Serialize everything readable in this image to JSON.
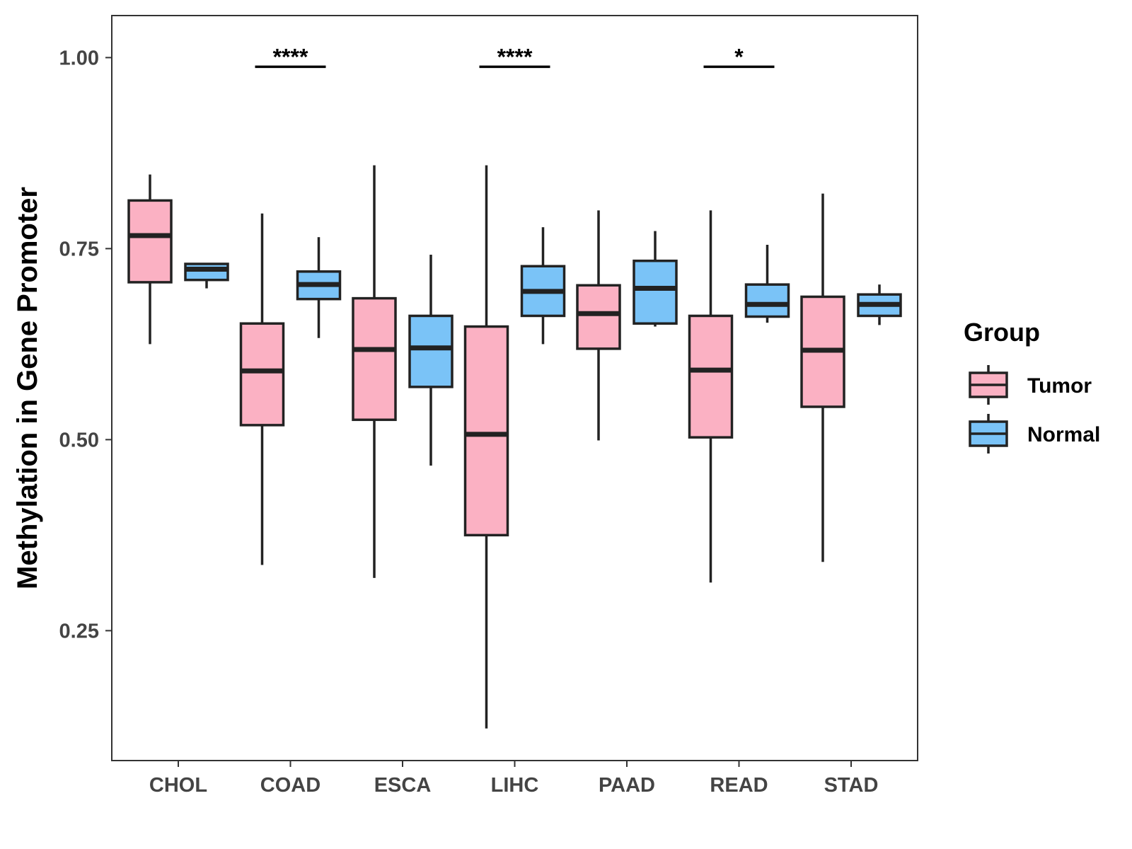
{
  "chart_data": {
    "type": "boxplot",
    "ylabel": "Methylation in Gene Promoter",
    "xlabel": "",
    "ylim": [
      0.08,
      1.055
    ],
    "yticks": [
      0.25,
      0.5,
      0.75,
      1.0
    ],
    "ytick_labels": [
      "0.25",
      "0.50",
      "0.75",
      "1.00"
    ],
    "categories": [
      "CHOL",
      "COAD",
      "ESCA",
      "LIHC",
      "PAAD",
      "READ",
      "STAD"
    ],
    "legend": {
      "title": "Group",
      "position": "right",
      "entries": [
        {
          "name": "Tumor",
          "color": "#FBB1C3"
        },
        {
          "name": "Normal",
          "color": "#7AC3F7"
        }
      ]
    },
    "series": [
      {
        "name": "Tumor",
        "color": "#FBB1C3",
        "boxes": [
          {
            "category": "CHOL",
            "whisker_low": 0.625,
            "q1": 0.706,
            "median": 0.767,
            "q3": 0.813,
            "whisker_high": 0.847
          },
          {
            "category": "COAD",
            "whisker_low": 0.336,
            "q1": 0.519,
            "median": 0.59,
            "q3": 0.652,
            "whisker_high": 0.796
          },
          {
            "category": "ESCA",
            "whisker_low": 0.319,
            "q1": 0.526,
            "median": 0.618,
            "q3": 0.685,
            "whisker_high": 0.859
          },
          {
            "category": "LIHC",
            "whisker_low": 0.122,
            "q1": 0.375,
            "median": 0.507,
            "q3": 0.648,
            "whisker_high": 0.859
          },
          {
            "category": "PAAD",
            "whisker_low": 0.499,
            "q1": 0.619,
            "median": 0.665,
            "q3": 0.702,
            "whisker_high": 0.8
          },
          {
            "category": "READ",
            "whisker_low": 0.313,
            "q1": 0.503,
            "median": 0.591,
            "q3": 0.662,
            "whisker_high": 0.8
          },
          {
            "category": "STAD",
            "whisker_low": 0.34,
            "q1": 0.543,
            "median": 0.617,
            "q3": 0.687,
            "whisker_high": 0.822
          }
        ]
      },
      {
        "name": "Normal",
        "color": "#7AC3F7",
        "boxes": [
          {
            "category": "CHOL",
            "whisker_low": 0.698,
            "q1": 0.709,
            "median": 0.723,
            "q3": 0.73,
            "whisker_high": 0.73
          },
          {
            "category": "COAD",
            "whisker_low": 0.633,
            "q1": 0.684,
            "median": 0.703,
            "q3": 0.72,
            "whisker_high": 0.765
          },
          {
            "category": "ESCA",
            "whisker_low": 0.466,
            "q1": 0.569,
            "median": 0.62,
            "q3": 0.662,
            "whisker_high": 0.742
          },
          {
            "category": "LIHC",
            "whisker_low": 0.625,
            "q1": 0.662,
            "median": 0.694,
            "q3": 0.727,
            "whisker_high": 0.778
          },
          {
            "category": "PAAD",
            "whisker_low": 0.648,
            "q1": 0.652,
            "median": 0.698,
            "q3": 0.734,
            "whisker_high": 0.773
          },
          {
            "category": "READ",
            "whisker_low": 0.653,
            "q1": 0.661,
            "median": 0.677,
            "q3": 0.703,
            "whisker_high": 0.755
          },
          {
            "category": "STAD",
            "whisker_low": 0.65,
            "q1": 0.662,
            "median": 0.677,
            "q3": 0.69,
            "whisker_high": 0.703
          }
        ]
      }
    ],
    "annotations": [
      {
        "category": "COAD",
        "label": "****",
        "y": 0.988
      },
      {
        "category": "LIHC",
        "label": "****",
        "y": 0.988
      },
      {
        "category": "READ",
        "label": "*",
        "y": 0.988
      }
    ]
  }
}
